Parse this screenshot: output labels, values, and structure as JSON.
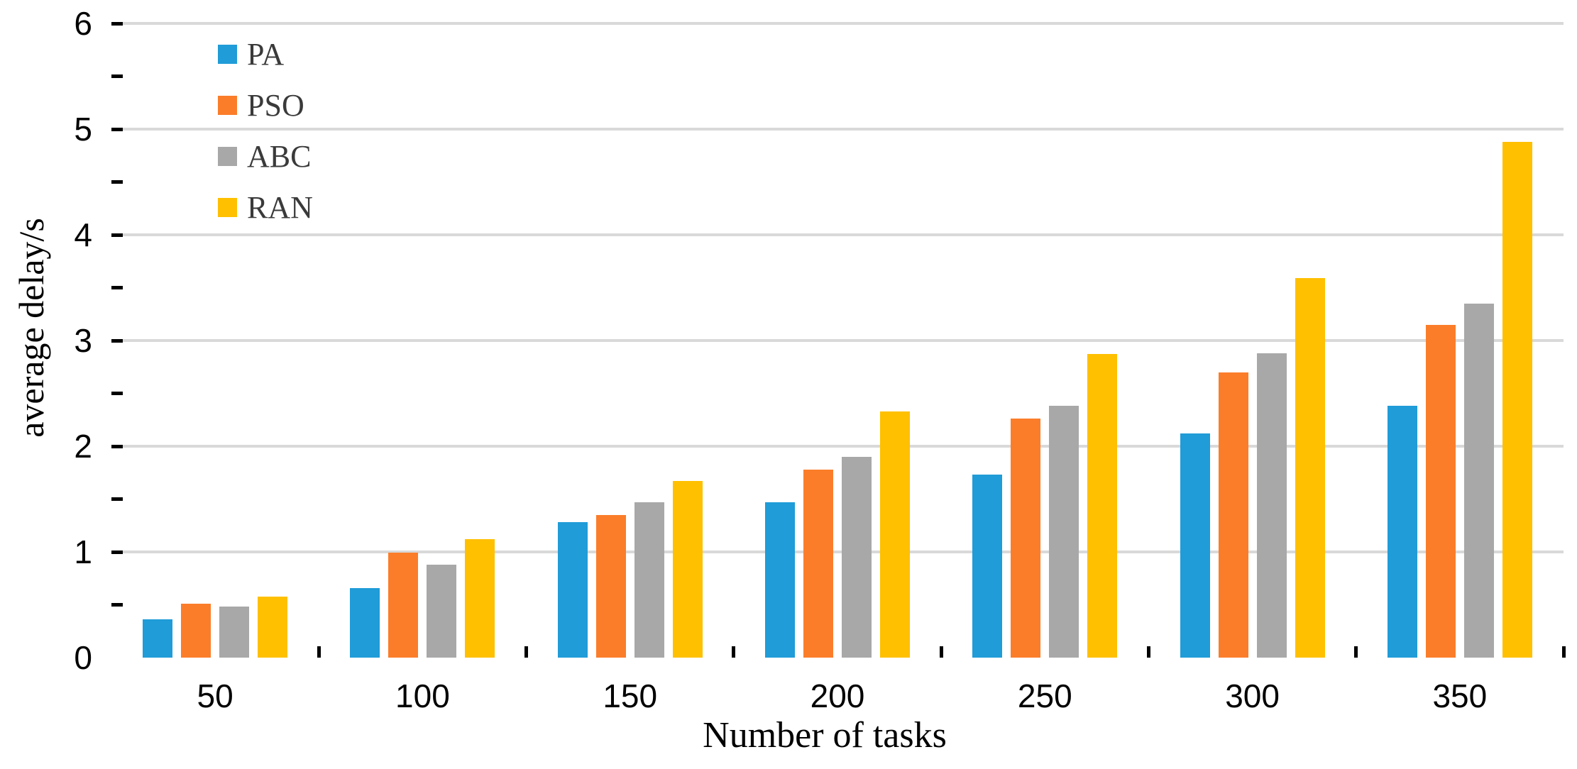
{
  "chart_data": {
    "type": "bar",
    "title": "",
    "xlabel": "Number of tasks",
    "ylabel": "average delay/s",
    "categories": [
      "50",
      "100",
      "150",
      "200",
      "250",
      "300",
      "350"
    ],
    "series": [
      {
        "name": "PA",
        "color": "#209CD8",
        "values": [
          0.36,
          0.66,
          1.28,
          1.47,
          1.73,
          2.12,
          2.38
        ]
      },
      {
        "name": "PSO",
        "color": "#FB7D2A",
        "values": [
          0.51,
          0.99,
          1.35,
          1.78,
          2.26,
          2.7,
          3.15
        ]
      },
      {
        "name": "ABC",
        "color": "#A8A8A8",
        "values": [
          0.48,
          0.88,
          1.47,
          1.9,
          2.38,
          2.88,
          3.35
        ]
      },
      {
        "name": "RAN",
        "color": "#FFC000",
        "values": [
          0.58,
          1.12,
          1.67,
          2.33,
          2.87,
          3.59,
          4.88
        ]
      }
    ],
    "ylim": [
      0,
      6
    ],
    "ytick_step": 1,
    "ytick_minor_step": 0.5,
    "y_tick_labels": [
      "0",
      "1",
      "2",
      "3",
      "4",
      "5",
      "6"
    ],
    "grid": "horizontal-major",
    "legend_position": "top-left"
  },
  "colors": {
    "background": "#FFFFFF",
    "gridline": "#D9D9D9",
    "axis": "#000000",
    "tick_label": "#000000",
    "legend_text": "#3A3A3A"
  }
}
